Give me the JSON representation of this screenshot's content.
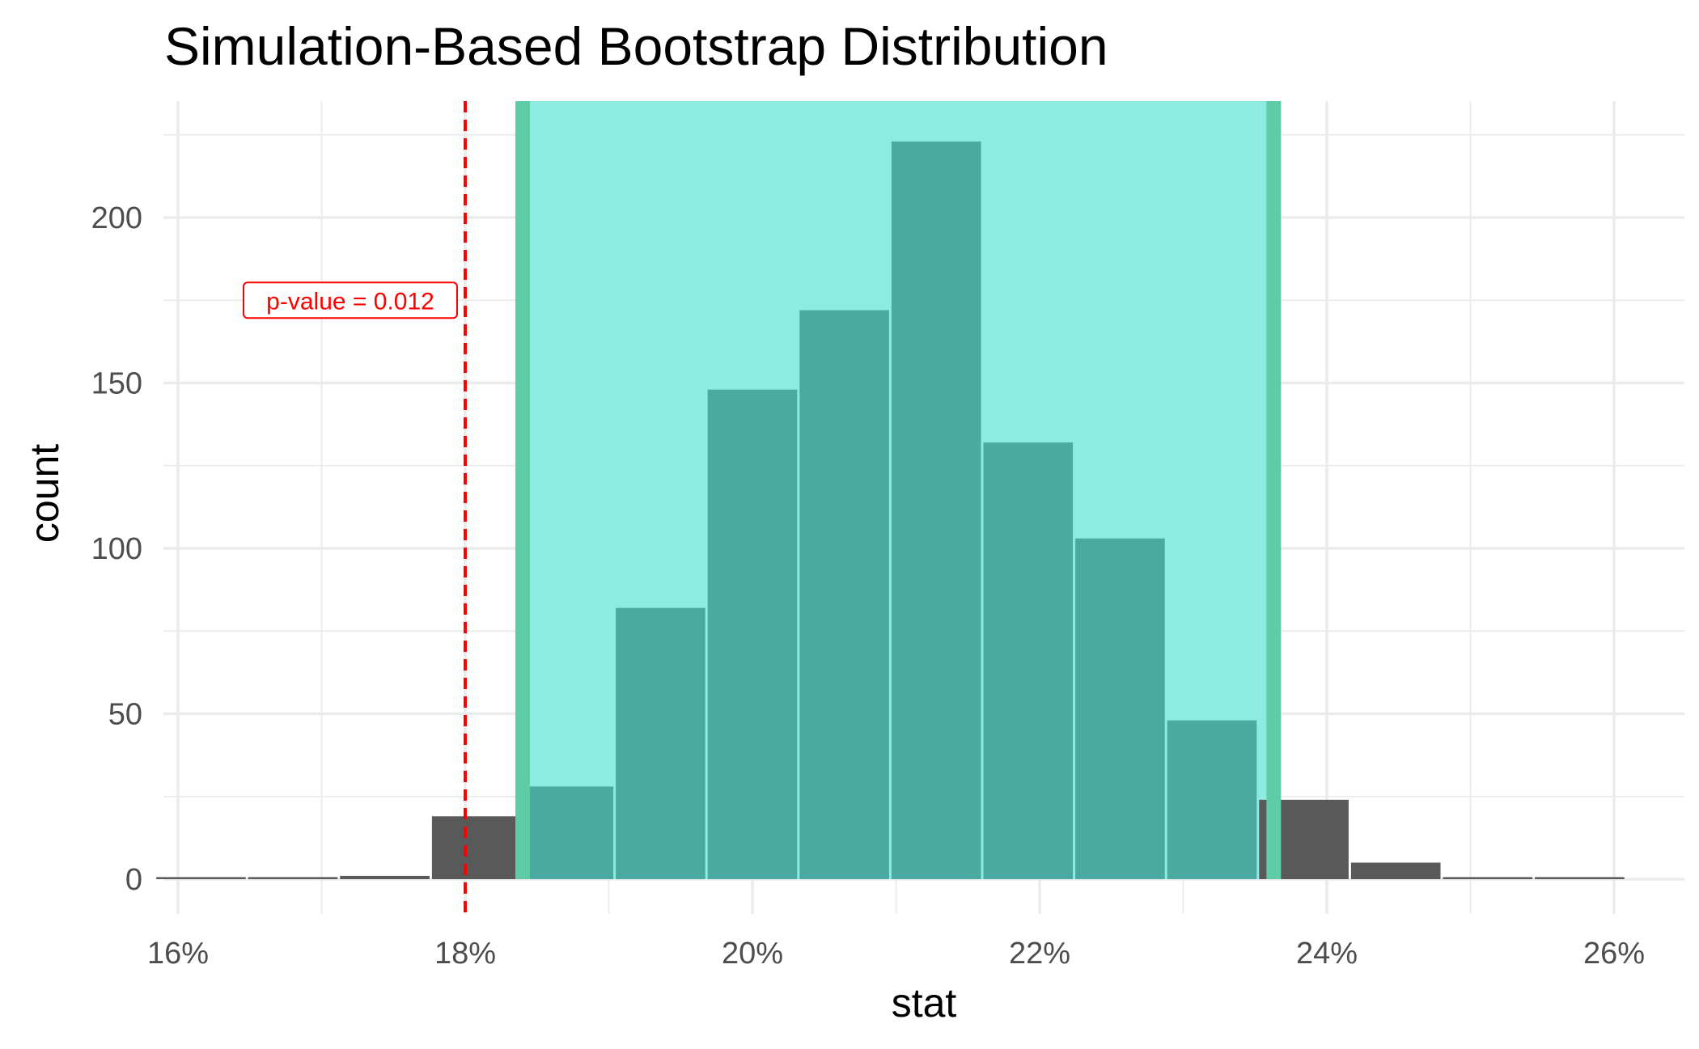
{
  "chart_data": {
    "type": "bar",
    "title": "Simulation-Based Bootstrap Distribution",
    "xlabel": "stat",
    "ylabel": "count",
    "xlim": [
      0.16,
      0.26
    ],
    "ylim": [
      0,
      230
    ],
    "x_ticks": [
      0.16,
      0.18,
      0.2,
      0.22,
      0.24,
      0.26
    ],
    "x_tick_labels": [
      "16%",
      "18%",
      "20%",
      "22%",
      "24%",
      "26%"
    ],
    "y_ticks": [
      0,
      50,
      100,
      150,
      200
    ],
    "y_tick_labels": [
      "0",
      "50",
      "100",
      "150",
      "200"
    ],
    "grid": true,
    "bin_width": 0.0064,
    "bins": [
      {
        "x": 0.1616,
        "count": 0
      },
      {
        "x": 0.168,
        "count": 0
      },
      {
        "x": 0.1744,
        "count": 1
      },
      {
        "x": 0.1808,
        "count": 19
      },
      {
        "x": 0.1872,
        "count": 28
      },
      {
        "x": 0.1936,
        "count": 82
      },
      {
        "x": 0.2,
        "count": 148
      },
      {
        "x": 0.2064,
        "count": 172
      },
      {
        "x": 0.2128,
        "count": 223
      },
      {
        "x": 0.2192,
        "count": 132
      },
      {
        "x": 0.2256,
        "count": 103
      },
      {
        "x": 0.232,
        "count": 48
      },
      {
        "x": 0.2384,
        "count": 24
      },
      {
        "x": 0.2448,
        "count": 5
      },
      {
        "x": 0.2512,
        "count": 0
      },
      {
        "x": 0.2576,
        "count": 0
      }
    ],
    "confidence_interval": [
      0.184,
      0.2363
    ],
    "observed_stat": 0.18,
    "annotation": "p-value = 0.012",
    "colors": {
      "bar_outside": "#595959",
      "bar_inside": "#4aa9a0",
      "ci_fill": "#8eebe2",
      "ci_edge": "#5fcca8",
      "observed_line": "#ff0000",
      "grid": "#ebebeb"
    }
  }
}
